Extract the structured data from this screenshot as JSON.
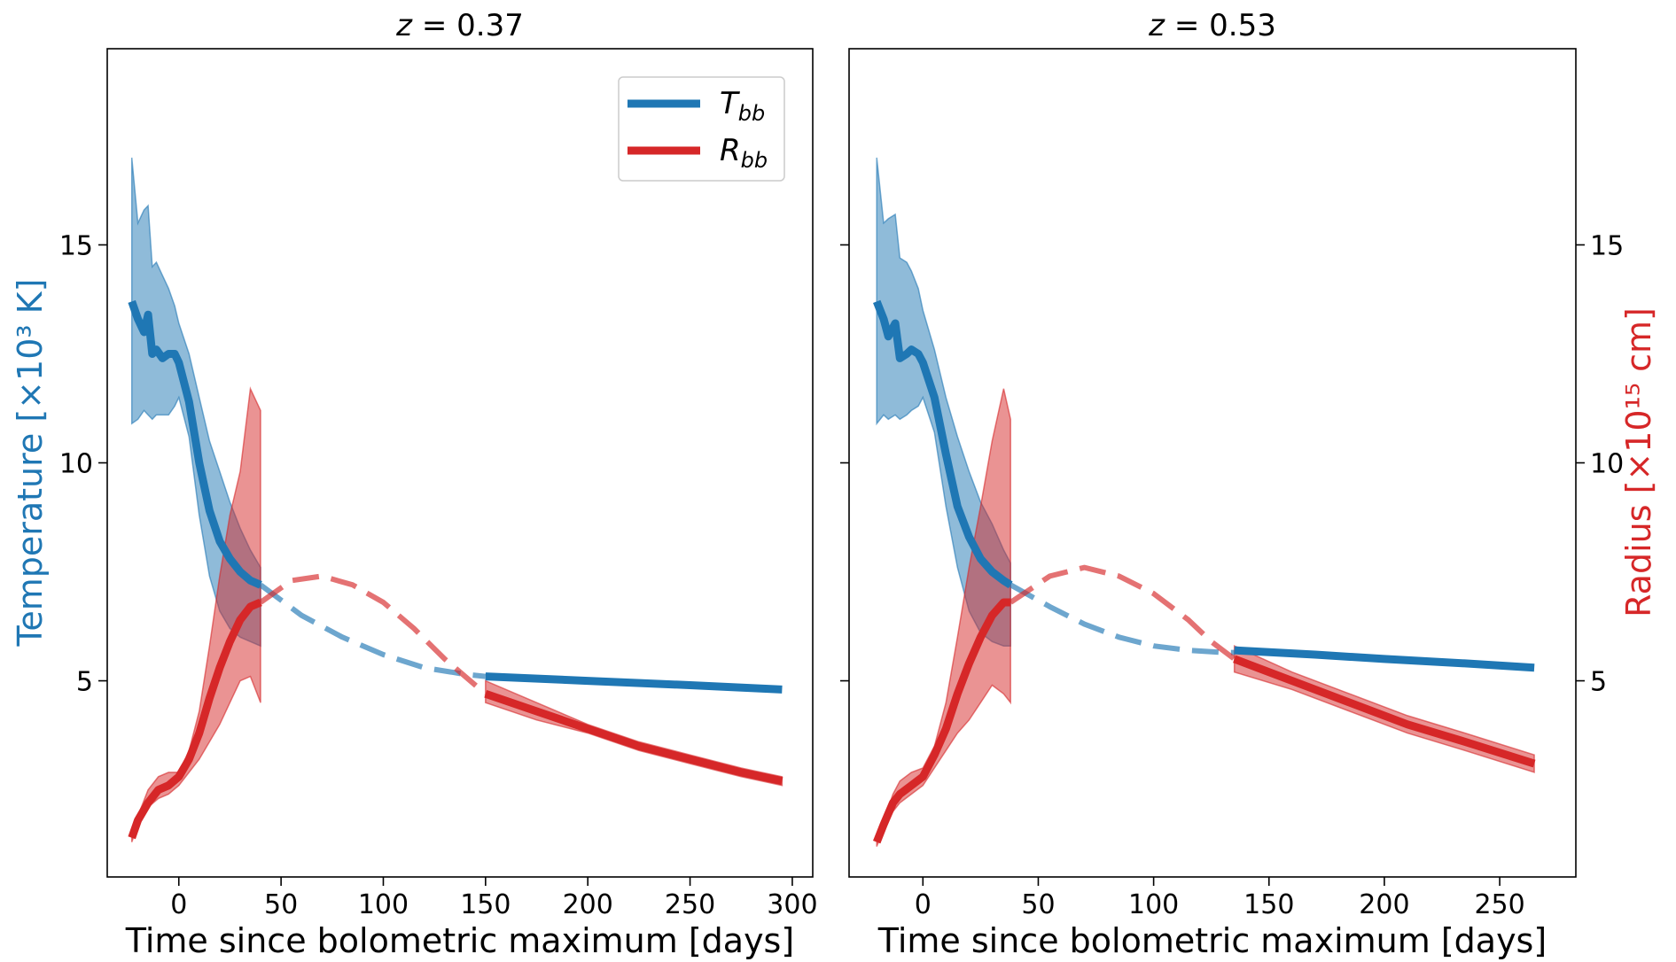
{
  "colors": {
    "temperature": "#1f77b4",
    "radius": "#d62728"
  },
  "chart_data": [
    {
      "type": "line",
      "panel": "left",
      "title_prefix": "z = ",
      "title_value": "0.37",
      "xlabel": "Time since bolometric maximum [days]",
      "ylabel": "Temperature [×10³ K]",
      "xlim": [
        -35,
        310
      ],
      "ylim": [
        0.5,
        19.5
      ],
      "xticks": [
        0,
        50,
        100,
        150,
        200,
        250,
        300
      ],
      "yticks": [
        5,
        10,
        15
      ],
      "legend": {
        "position": "top-right",
        "entries": [
          "T_bb",
          "R_bb"
        ]
      },
      "series": [
        {
          "name": "T_bb",
          "color": "#1f77b4",
          "style": "solid",
          "x": [
            -23,
            -20,
            -17,
            -15,
            -13,
            -11,
            -8,
            -5,
            -2,
            0,
            5,
            10,
            15,
            20,
            25,
            30,
            35,
            40
          ],
          "y": [
            13.7,
            13.3,
            13.0,
            13.4,
            12.5,
            12.6,
            12.4,
            12.5,
            12.5,
            12.3,
            11.4,
            10.0,
            8.9,
            8.2,
            7.8,
            7.5,
            7.3,
            7.2
          ],
          "band_upper": [
            17.0,
            15.5,
            15.8,
            15.9,
            14.5,
            14.6,
            14.3,
            14.0,
            13.6,
            13.2,
            12.5,
            11.5,
            10.5,
            9.8,
            9.1,
            8.5,
            8.0,
            7.6
          ],
          "band_lower": [
            10.9,
            11.0,
            11.2,
            11.1,
            11.0,
            11.1,
            11.1,
            11.1,
            11.3,
            11.5,
            10.6,
            8.8,
            7.4,
            6.6,
            6.2,
            6.0,
            5.9,
            5.8
          ]
        },
        {
          "name": "T_bb interpolation",
          "color": "#1f77b4",
          "style": "dashed",
          "x": [
            40,
            60,
            80,
            100,
            120,
            140,
            150
          ],
          "y": [
            7.2,
            6.5,
            6.0,
            5.6,
            5.3,
            5.15,
            5.1
          ]
        },
        {
          "name": "T_bb late",
          "color": "#1f77b4",
          "style": "solid",
          "x": [
            150,
            200,
            250,
            295
          ],
          "y": [
            5.1,
            5.0,
            4.9,
            4.8
          ]
        },
        {
          "name": "R_bb",
          "color": "#d62728",
          "style": "solid",
          "x": [
            -23,
            -20,
            -15,
            -10,
            -5,
            0,
            5,
            10,
            15,
            20,
            25,
            30,
            35,
            40
          ],
          "y": [
            1.4,
            1.8,
            2.2,
            2.5,
            2.6,
            2.8,
            3.2,
            3.8,
            4.6,
            5.3,
            5.9,
            6.4,
            6.7,
            6.8
          ],
          "band_upper": [
            1.4,
            1.9,
            2.5,
            2.8,
            2.9,
            2.9,
            3.4,
            4.3,
            5.8,
            7.4,
            8.8,
            9.8,
            11.7,
            11.2
          ],
          "band_lower": [
            1.3,
            1.7,
            2.1,
            2.3,
            2.4,
            2.6,
            2.9,
            3.2,
            3.6,
            4.0,
            4.5,
            5.0,
            5.1,
            4.5
          ]
        },
        {
          "name": "R_bb interpolation",
          "color": "#d62728",
          "style": "dashed",
          "x": [
            40,
            55,
            70,
            85,
            100,
            115,
            130,
            150
          ],
          "y": [
            6.8,
            7.3,
            7.4,
            7.2,
            6.8,
            6.2,
            5.5,
            4.7
          ]
        },
        {
          "name": "R_bb late",
          "color": "#d62728",
          "style": "solid",
          "x": [
            150,
            175,
            200,
            225,
            250,
            275,
            295
          ],
          "y": [
            4.7,
            4.3,
            3.9,
            3.5,
            3.2,
            2.9,
            2.7
          ],
          "band_upper": [
            5.0,
            4.5,
            4.0,
            3.6,
            3.3,
            3.0,
            2.8
          ],
          "band_lower": [
            4.5,
            4.1,
            3.8,
            3.4,
            3.1,
            2.8,
            2.6
          ]
        }
      ]
    },
    {
      "type": "line",
      "panel": "right",
      "title_prefix": "z = ",
      "title_value": "0.53",
      "xlabel": "Time since bolometric maximum [days]",
      "ylabel": "Radius [×10¹⁵ cm]",
      "xlim": [
        -32,
        283
      ],
      "ylim": [
        0.5,
        19.5
      ],
      "xticks": [
        0,
        50,
        100,
        150,
        200,
        250
      ],
      "yticks": [
        5,
        10,
        15
      ],
      "series": [
        {
          "name": "T_bb",
          "color": "#1f77b4",
          "style": "solid",
          "x": [
            -20,
            -17,
            -15,
            -12,
            -10,
            -7,
            -5,
            -2,
            0,
            5,
            10,
            15,
            20,
            25,
            30,
            35,
            38
          ],
          "y": [
            13.7,
            13.3,
            12.9,
            13.2,
            12.4,
            12.5,
            12.6,
            12.5,
            12.3,
            11.5,
            10.2,
            9.0,
            8.3,
            7.8,
            7.5,
            7.3,
            7.2
          ],
          "band_upper": [
            17.0,
            15.5,
            15.6,
            15.7,
            14.7,
            14.6,
            14.4,
            14.0,
            13.5,
            12.6,
            11.5,
            10.6,
            9.8,
            9.1,
            8.6,
            8.0,
            7.7
          ],
          "band_lower": [
            10.9,
            11.1,
            11.0,
            11.1,
            11.0,
            11.1,
            11.2,
            11.3,
            11.5,
            10.7,
            9.0,
            7.6,
            6.6,
            6.1,
            5.9,
            5.8,
            5.8
          ]
        },
        {
          "name": "T_bb interpolation",
          "color": "#1f77b4",
          "style": "dashed",
          "x": [
            38,
            55,
            70,
            85,
            100,
            115,
            130,
            135
          ],
          "y": [
            7.2,
            6.7,
            6.3,
            6.0,
            5.8,
            5.7,
            5.65,
            5.65
          ]
        },
        {
          "name": "T_bb late",
          "color": "#1f77b4",
          "style": "solid",
          "x": [
            135,
            170,
            200,
            235,
            265
          ],
          "y": [
            5.7,
            5.6,
            5.5,
            5.4,
            5.3
          ]
        },
        {
          "name": "R_bb",
          "color": "#d62728",
          "style": "solid",
          "x": [
            -20,
            -17,
            -13,
            -10,
            -5,
            0,
            5,
            10,
            15,
            20,
            25,
            30,
            35,
            38
          ],
          "y": [
            1.3,
            1.7,
            2.2,
            2.4,
            2.6,
            2.8,
            3.3,
            3.9,
            4.7,
            5.4,
            6.0,
            6.5,
            6.8,
            6.8
          ],
          "band_upper": [
            1.4,
            1.8,
            2.4,
            2.7,
            2.9,
            3.0,
            3.5,
            4.5,
            6.0,
            7.6,
            9.0,
            10.5,
            11.7,
            11.0
          ],
          "band_lower": [
            1.2,
            1.6,
            2.0,
            2.2,
            2.4,
            2.6,
            3.0,
            3.4,
            3.8,
            4.1,
            4.5,
            4.9,
            4.7,
            4.5
          ]
        },
        {
          "name": "R_bb interpolation",
          "color": "#d62728",
          "style": "dashed",
          "x": [
            38,
            55,
            70,
            85,
            100,
            115,
            125,
            135
          ],
          "y": [
            6.8,
            7.4,
            7.6,
            7.4,
            7.0,
            6.4,
            5.9,
            5.5
          ]
        },
        {
          "name": "R_bb late",
          "color": "#d62728",
          "style": "solid",
          "x": [
            135,
            160,
            185,
            210,
            235,
            265
          ],
          "y": [
            5.5,
            5.0,
            4.5,
            4.0,
            3.6,
            3.1
          ],
          "band_upper": [
            5.8,
            5.2,
            4.7,
            4.2,
            3.8,
            3.3
          ],
          "band_lower": [
            5.2,
            4.8,
            4.3,
            3.8,
            3.4,
            2.9
          ]
        }
      ]
    }
  ]
}
